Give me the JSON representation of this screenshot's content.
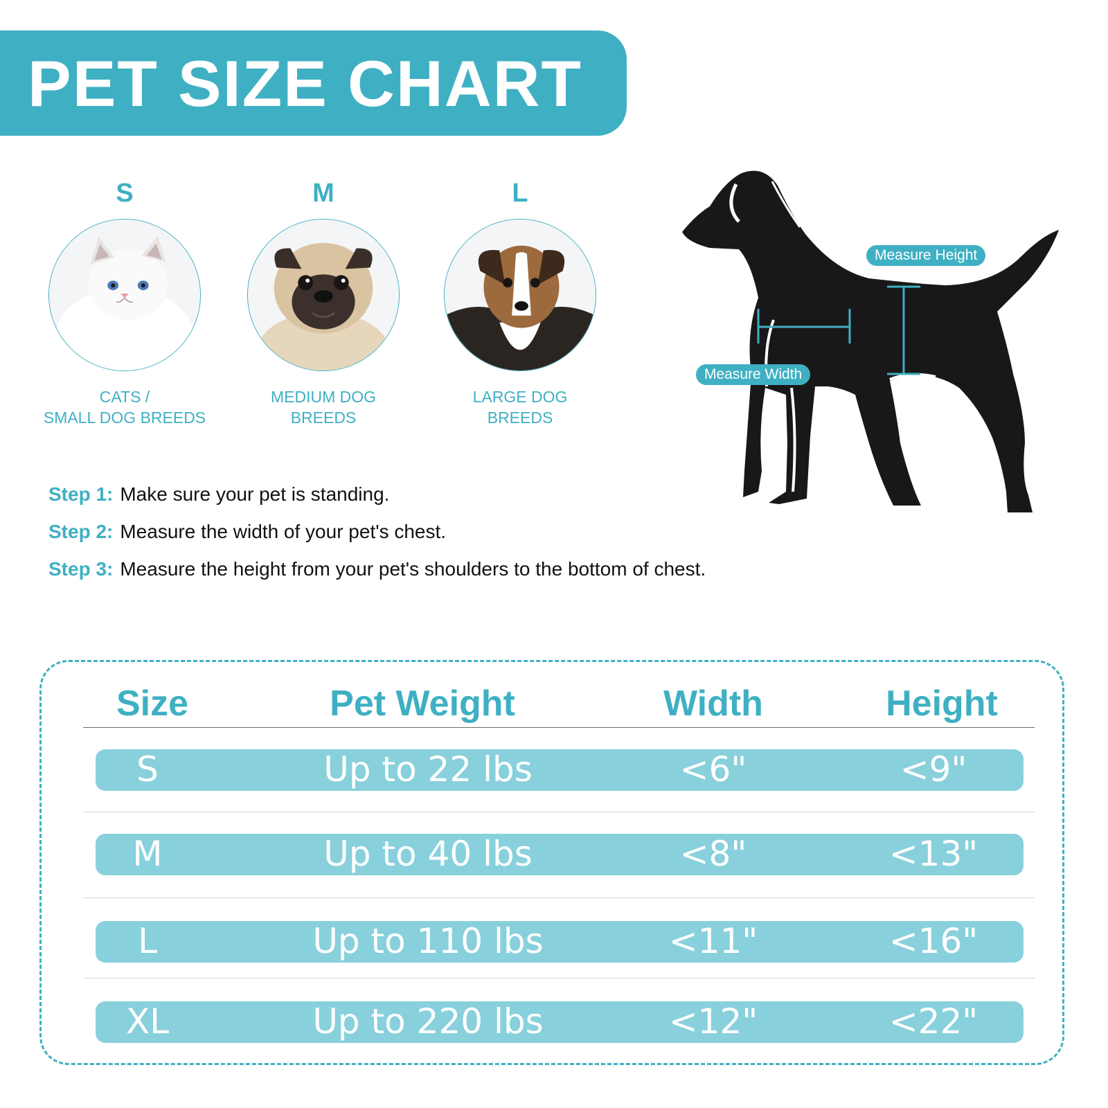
{
  "header": {
    "title": "PET SIZE CHART"
  },
  "sizes": [
    {
      "letter": "S",
      "caption_line1": "CATS /",
      "caption_line2": "SMALL DOG BREEDS",
      "photo": "cat-photo"
    },
    {
      "letter": "M",
      "caption_line1": "MEDIUM DOG",
      "caption_line2": "BREEDS",
      "photo": "pug-photo"
    },
    {
      "letter": "L",
      "caption_line1": "LARGE DOG",
      "caption_line2": "BREEDS",
      "photo": "shepherd-dog-photo"
    }
  ],
  "diagram": {
    "height_label": "Measure Height",
    "width_label": "Measure Width",
    "figure": "dog-silhouette",
    "accent": "#3fb0c3"
  },
  "steps": [
    {
      "label": "Step 1:",
      "text": "Make sure your pet is standing."
    },
    {
      "label": "Step 2:",
      "text": "Measure the width of your pet's chest."
    },
    {
      "label": "Step 3:",
      "text": "Measure the height from your pet's shoulders to the bottom of chest."
    }
  ],
  "table": {
    "headers": [
      "Size",
      "Pet Weight",
      "Width",
      "Height"
    ],
    "rows": [
      [
        "S",
        "Up to 22 lbs",
        "<6\"",
        "<9\""
      ],
      [
        "M",
        "Up to 40 lbs",
        "<8\"",
        "<13\""
      ],
      [
        "L",
        "Up to 110 lbs",
        "<11\"",
        "<16\""
      ],
      [
        "XL",
        "Up to 220 lbs",
        "<12\"",
        "<22\""
      ]
    ]
  },
  "colors": {
    "accent": "#3fb0c3",
    "row_band": "#88d0dc",
    "text": "#111111",
    "background": "#ffffff"
  }
}
